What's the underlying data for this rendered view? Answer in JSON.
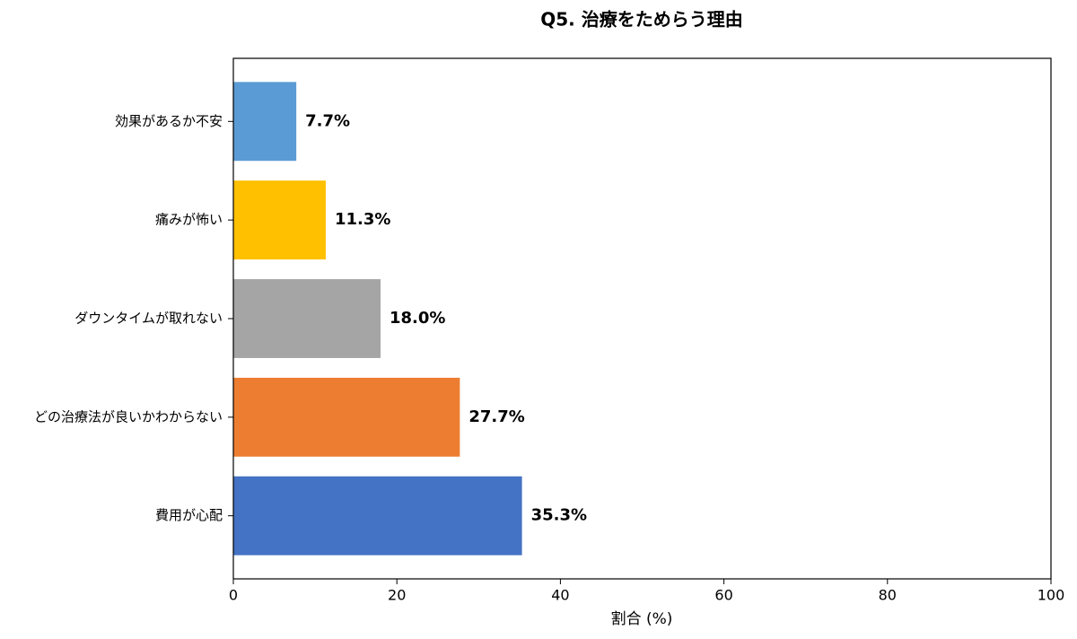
{
  "chart_data": {
    "type": "bar",
    "orientation": "horizontal",
    "title": "Q5. 治療をためらう理由",
    "xlabel": "割合 (%)",
    "categories": [
      "効果があるか不安",
      "痛みが怖い",
      "ダウンタイムが取れない",
      "どの治療法が良いかわからない",
      "費用が心配"
    ],
    "values": [
      7.7,
      11.3,
      18.0,
      27.7,
      35.3
    ],
    "value_labels": [
      "7.7%",
      "11.3%",
      "18.0%",
      "27.7%",
      "35.3%"
    ],
    "colors": [
      "#5b9bd5",
      "#ffc000",
      "#a5a5a5",
      "#ed7d31",
      "#4472c4"
    ],
    "xlim": [
      0,
      100
    ],
    "xticks": [
      0,
      20,
      40,
      60,
      80,
      100
    ],
    "grid": false
  }
}
